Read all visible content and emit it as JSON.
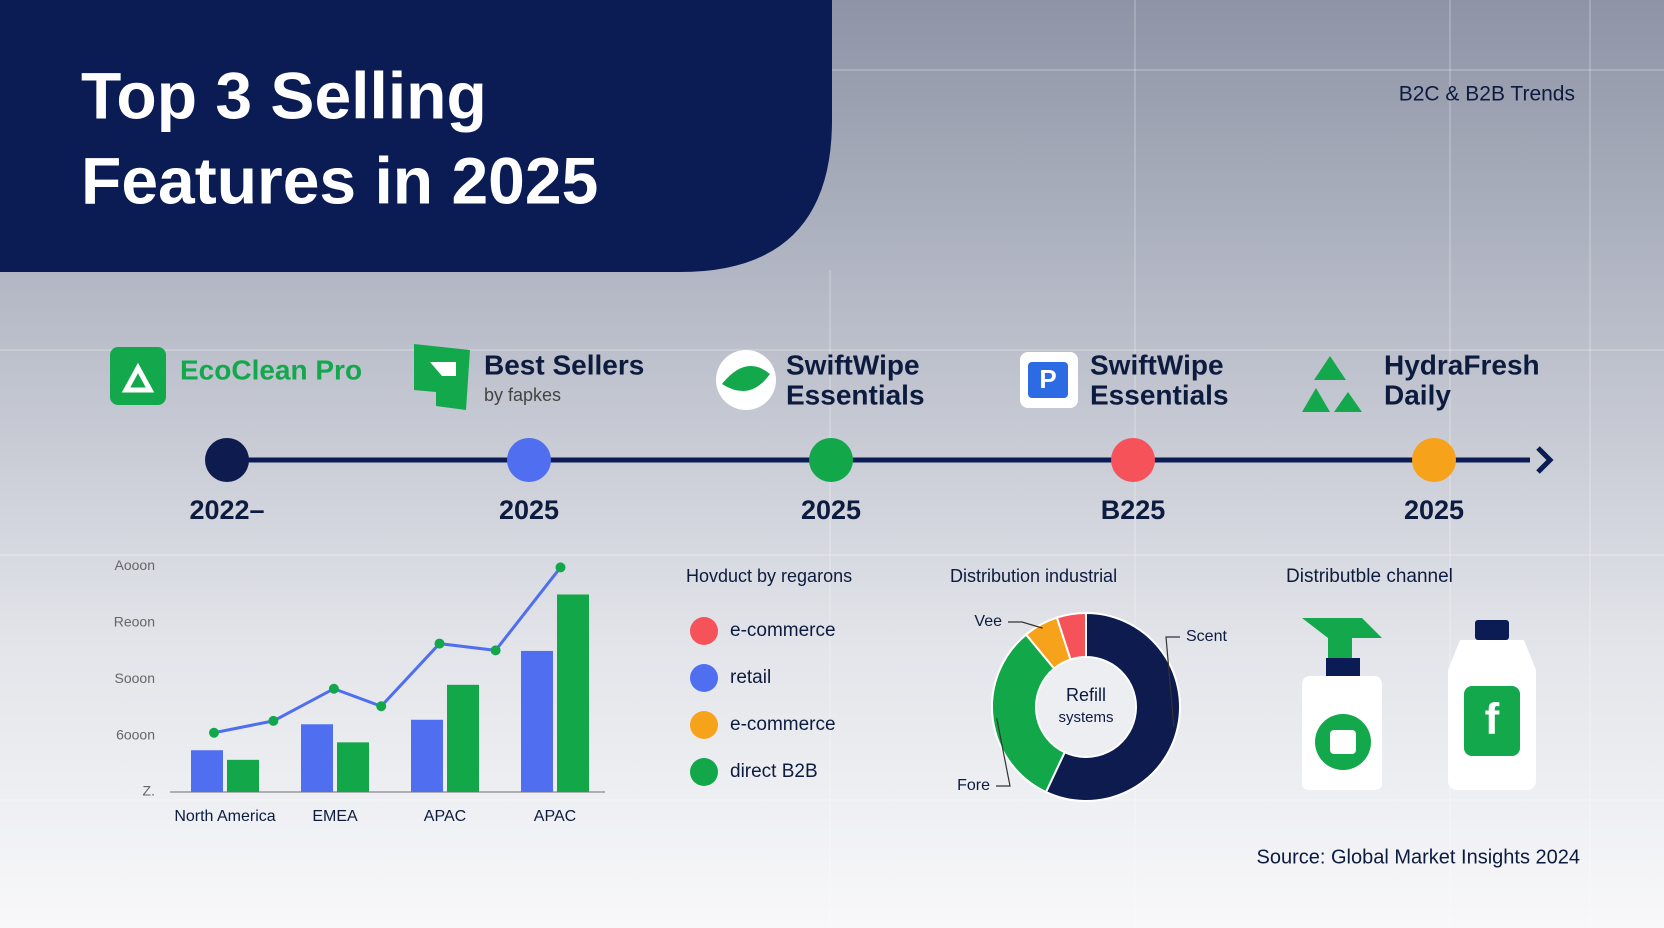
{
  "header": {
    "title_lines": [
      "Top 3 Selling",
      "Features in 2025"
    ],
    "subtitle": "B2C & B2B Trends"
  },
  "timeline": {
    "items": [
      {
        "name": [
          "EcoClean Pro"
        ],
        "date": "2022–",
        "color": "#0d1b4f"
      },
      {
        "name": [
          "Best Sellers"
        ],
        "sub": "by fapkes",
        "date": "2025",
        "color": "#4f6ef0"
      },
      {
        "name": [
          "SwiftWipe",
          "Essentials"
        ],
        "date": "2025",
        "color": "#12a84a"
      },
      {
        "name": [
          "SwiftWipe",
          "Essentials"
        ],
        "date": "B225",
        "color": "#f5525a"
      },
      {
        "name": [
          "HydraFresh",
          "Daily"
        ],
        "date": "2025",
        "color": "#f7a21b"
      }
    ]
  },
  "chart_data": [
    {
      "type": "bar",
      "categories": [
        "North America",
        "EMEA",
        "APAC",
        "APAC"
      ],
      "series": [
        {
          "color": "#4f6ef0",
          "values": [
            0.74,
            1.2,
            1.28,
            2.5
          ]
        },
        {
          "color": "#12a84a",
          "values": [
            0.57,
            0.88,
            1.9,
            3.5
          ]
        },
        {
          "type": "line",
          "color": "#4f6ef0",
          "x": [
            -0.1,
            0.44,
            0.99,
            1.42,
            1.95,
            2.46,
            3.05
          ],
          "values": [
            1.05,
            1.26,
            1.83,
            1.52,
            2.63,
            2.51,
            3.98
          ],
          "marker_color": "#12a84a"
        }
      ],
      "ylim": [
        0,
        4.2
      ],
      "yticks": [
        {
          "value": 0,
          "label": "Z."
        },
        {
          "value": 1,
          "label": "6ooon"
        },
        {
          "value": 2,
          "label": "Sooon"
        },
        {
          "value": 3,
          "label": "Reoon"
        },
        {
          "value": 4,
          "label": "Aooon"
        }
      ]
    },
    {
      "type": "pie",
      "donut": true,
      "title": "Distribution industrial",
      "center_label": [
        "Refill",
        "systems"
      ],
      "categories": [
        "Scent",
        "Fore",
        "Vee",
        null
      ],
      "values": [
        57,
        32,
        6,
        5
      ],
      "colors": [
        "#0d1b4f",
        "#12a84a",
        "#f7a21b",
        "#f5525a"
      ]
    }
  ],
  "regions_panel": {
    "title": "Hovduct by regarons",
    "items": [
      {
        "label": "e-commerce",
        "color": "#f5525a"
      },
      {
        "label": "retail",
        "color": "#4f6ef0"
      },
      {
        "label": "e-commerce",
        "color": "#f7a21b"
      },
      {
        "label": "direct B2B",
        "color": "#12a84a"
      }
    ]
  },
  "channel": {
    "title": "Distributble channel"
  },
  "source": "Source: Global Market Insights 2024"
}
